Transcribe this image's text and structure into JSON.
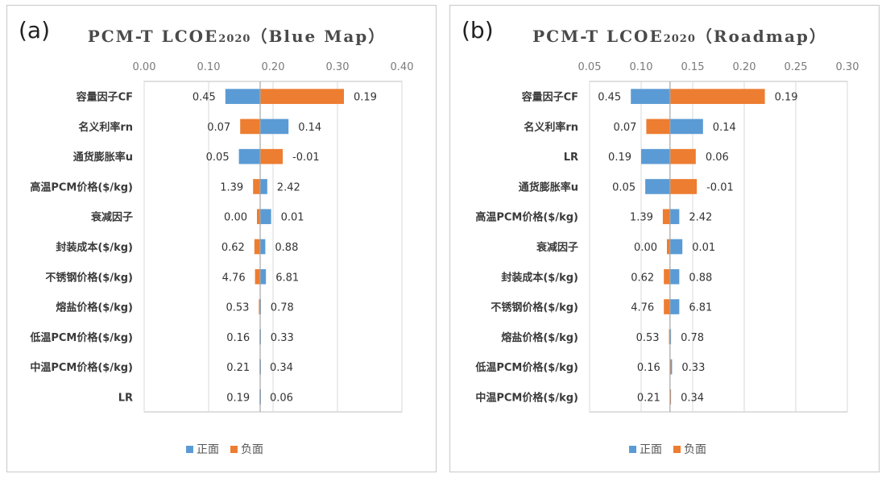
{
  "colors": {
    "positive": "#5b9bd5",
    "negative": "#ed7d31",
    "grid": "#d9d9d9",
    "axis": "#bfbfbf"
  },
  "legend": {
    "positive": "正面",
    "negative": "负面"
  },
  "chart_data": [
    {
      "type": "bar",
      "panel_label": "(a)",
      "title_main": "PCM-T LCOE",
      "title_sub": "2020",
      "title_tail": "（Blue Map）",
      "xlim": [
        0,
        0.4
      ],
      "xticks": [
        "0.00",
        "0.10",
        "0.20",
        "0.30",
        "0.40"
      ],
      "base": 0.18,
      "categories": [
        "容量因子CF",
        "名义利率rn",
        "通货膨胀率u",
        "高温PCM价格($/kg)",
        "衰减因子",
        "封装成本($/kg)",
        "不锈钢价格($/kg)",
        "熔盐价格($/kg)",
        "低温PCM价格($/kg)",
        "中温PCM价格($/kg)",
        "LR"
      ],
      "series": [
        {
          "name": "正面",
          "values": [
            0.126,
            0.224,
            0.147,
            0.191,
            0.197,
            0.188,
            0.189,
            0.181,
            0.181,
            0.18,
            0.18
          ]
        },
        {
          "name": "负面",
          "values": [
            0.31,
            0.149,
            0.215,
            0.169,
            0.175,
            0.171,
            0.172,
            0.178,
            0.179,
            0.179,
            0.179
          ]
        }
      ],
      "labels_left": [
        "0.45",
        "0.07",
        "0.05",
        "1.39",
        "0.00",
        "0.62",
        "4.76",
        "0.53",
        "0.16",
        "0.21",
        "0.19"
      ],
      "labels_right": [
        "0.19",
        "0.14",
        "-0.01",
        "2.42",
        "0.01",
        "0.88",
        "6.81",
        "0.78",
        "0.33",
        "0.34",
        "0.06"
      ],
      "label_bold": [
        false,
        true,
        false,
        true,
        true,
        true,
        true,
        true,
        true,
        true,
        false
      ]
    },
    {
      "type": "bar",
      "panel_label": "(b)",
      "title_main": "PCM-T LCOE",
      "title_sub": "2020",
      "title_tail": "（Roadmap）",
      "xlim": [
        0.05,
        0.3
      ],
      "xticks": [
        "0.05",
        "0.10",
        "0.15",
        "0.20",
        "0.25",
        "0.30"
      ],
      "base": 0.128,
      "categories": [
        "容量因子CF",
        "名义利率rn",
        "LR",
        "通货膨胀率u",
        "高温PCM价格($/kg)",
        "衰减因子",
        "封装成本($/kg)",
        "不锈钢价格($/kg)",
        "熔盐价格($/kg)",
        "低温PCM价格($/kg)",
        "中温PCM价格($/kg)"
      ],
      "series": [
        {
          "name": "正面",
          "values": [
            0.09,
            0.16,
            0.1,
            0.104,
            0.137,
            0.14,
            0.137,
            0.137,
            0.129,
            0.13,
            0.129
          ]
        },
        {
          "name": "负面",
          "values": [
            0.22,
            0.105,
            0.153,
            0.154,
            0.121,
            0.125,
            0.122,
            0.122,
            0.127,
            0.128,
            0.128
          ]
        }
      ],
      "labels_left": [
        "0.45",
        "0.07",
        "0.19",
        "0.05",
        "1.39",
        "0.00",
        "0.62",
        "4.76",
        "0.53",
        "0.16",
        "0.21"
      ],
      "labels_right": [
        "0.19",
        "0.14",
        "0.06",
        "-0.01",
        "2.42",
        "0.01",
        "0.88",
        "6.81",
        "0.78",
        "0.33",
        "0.34"
      ],
      "label_bold": [
        false,
        false,
        false,
        false,
        false,
        false,
        false,
        false,
        false,
        false,
        false
      ]
    }
  ]
}
